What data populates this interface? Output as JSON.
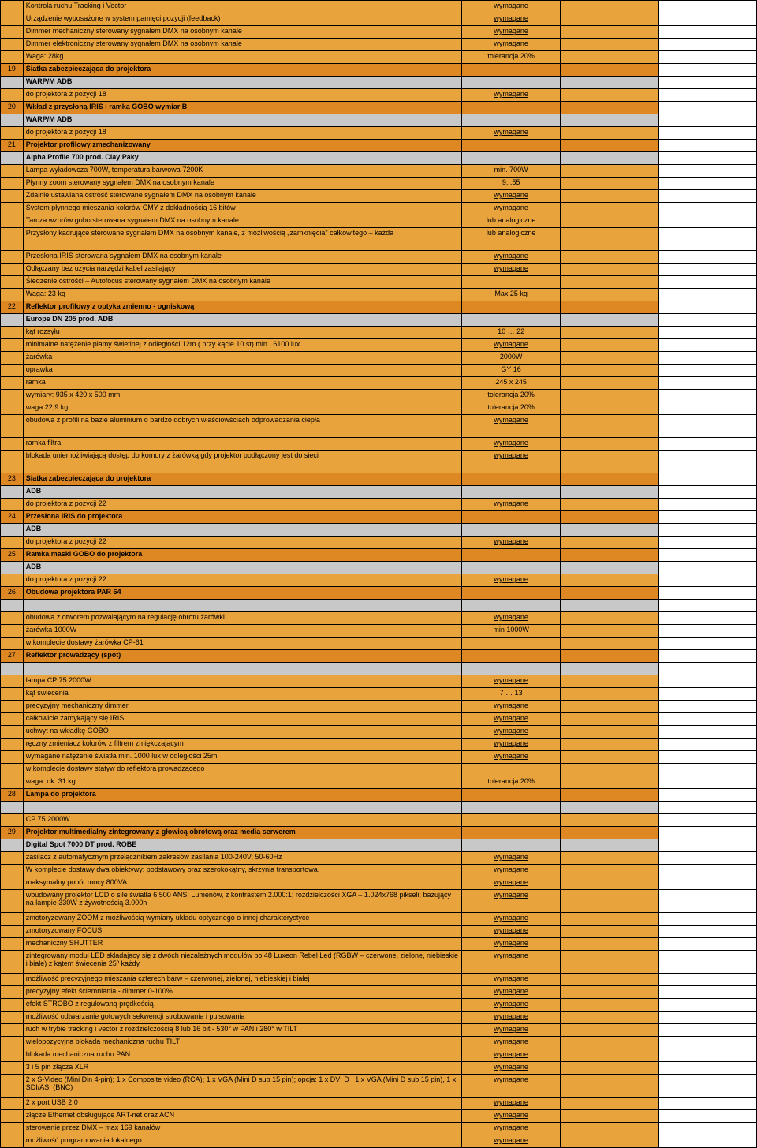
{
  "colors": {
    "orange": "#e8a33d",
    "orange_dark": "#de8824",
    "gray": "#c8c8c8"
  },
  "rows": [
    {
      "num": "",
      "desc": "Kontrola ruchu Tracking i Vector",
      "val": "wymagane",
      "cls": "orange",
      "descCls": "",
      "valCls": "underline"
    },
    {
      "num": "",
      "desc": "Urządzenie wyposażone w system pamięci pozycji (feedback)",
      "val": "wymagane",
      "cls": "orange",
      "valCls": "underline"
    },
    {
      "num": "",
      "desc": "Dimmer mechaniczny sterowany sygnałem DMX na osobnym kanale",
      "val": "wymagane",
      "cls": "orange",
      "valCls": "underline"
    },
    {
      "num": "",
      "desc": "Dimmer elektroniczny sterowany sygnałem DMX na osobnym kanale",
      "val": "wymagane",
      "cls": "orange",
      "valCls": "underline"
    },
    {
      "num": "",
      "desc": "Waga: 28kg",
      "val": "tolerancja 20%",
      "cls": "orange"
    },
    {
      "num": "19",
      "desc": "Siatka zabezpieczająca do projektora",
      "val": "",
      "cls": "orange-dark",
      "descCls": "bold"
    },
    {
      "num": "",
      "desc": "WARP/M ADB",
      "val": "",
      "cls": "gray",
      "descCls": "bold"
    },
    {
      "num": "",
      "desc": "do projektora z pozycji 18",
      "val": "wymagane",
      "cls": "orange",
      "valCls": "underline"
    },
    {
      "num": "20",
      "desc": "Wkład z przysłoną IRIS i ramką GOBO wymiar B",
      "val": "",
      "cls": "orange-dark",
      "descCls": "bold"
    },
    {
      "num": "",
      "desc": "WARP/M ADB",
      "val": "",
      "cls": "gray",
      "descCls": "bold"
    },
    {
      "num": "",
      "desc": "do projektora z pozycji 18",
      "val": "wymagane",
      "cls": "orange",
      "valCls": "underline"
    },
    {
      "num": "21",
      "desc": "Projektor profilowy zmechanizowany",
      "val": "",
      "cls": "orange-dark",
      "descCls": "bold"
    },
    {
      "num": "",
      "desc": "Alpha Profile 700 prod. Clay Paky",
      "val": "",
      "cls": "gray",
      "descCls": "bold"
    },
    {
      "num": "",
      "desc": "Lampa wyładowcza 700W, temperatura barwowa 7200K",
      "val": "min. 700W",
      "cls": "orange"
    },
    {
      "num": "",
      "desc": "Płynny zoom sterowany sygnałem DMX na osobnym kanale",
      "val": "9...55",
      "cls": "orange"
    },
    {
      "num": "",
      "desc": "Zdalnie ustawiana ostrość sterowane sygnałem DMX na osobnym kanale",
      "val": "wymagane",
      "cls": "orange",
      "valCls": "underline"
    },
    {
      "num": "",
      "desc": "System płynnego mieszania kolorów CMY z dokładnością 16 bitów",
      "val": "wymagane",
      "cls": "orange",
      "valCls": "underline"
    },
    {
      "num": "",
      "desc": "Tarcza wzorów gobo sterowana sygnałem DMX na osobnym kanale",
      "val": "lub analogiczne",
      "cls": "orange"
    },
    {
      "num": "",
      "desc": "Przysłony kadrujące sterowane sygnałem DMX na osobnym kanale, z możliwością „zamknięcia\" całkowitego – każda",
      "val": "lub analogiczne",
      "cls": "orange",
      "tall": true
    },
    {
      "num": "",
      "desc": "Przesłona IRIS sterowana sygnałem DMX na osobnym kanale",
      "val": "wymagane",
      "cls": "orange",
      "valCls": "underline"
    },
    {
      "num": "",
      "desc": "Odłączany bez uzycia narzędzi kabel zasilający",
      "val": "wymagane",
      "cls": "orange",
      "valCls": "underline"
    },
    {
      "num": "",
      "desc": "Śledzenie ostrości – Autofocus sterowany sygnałem DMX na osobnym kanale",
      "val": "",
      "cls": "orange"
    },
    {
      "num": "",
      "desc": "Waga: 23 kg",
      "val": "Max 25 kg",
      "cls": "orange"
    },
    {
      "num": "22",
      "desc": "Reflektor profilowy z optyka zmienno - ogniskową",
      "val": "",
      "cls": "orange-dark",
      "descCls": "bold"
    },
    {
      "num": "",
      "desc": "Europe DN 205 prod. ADB",
      "val": "",
      "cls": "gray",
      "descCls": "bold"
    },
    {
      "num": "",
      "desc": "kąt rozsyłu",
      "val": "10 … 22",
      "cls": "orange"
    },
    {
      "num": "",
      "desc": "minimalne natężenie plamy świetlnej z odległości 12m ( przy kącie 10 st) min . 6100 lux",
      "val": "wymagane",
      "cls": "orange",
      "valCls": "underline"
    },
    {
      "num": "",
      "desc": "żarówka",
      "val": "2000W",
      "cls": "orange"
    },
    {
      "num": "",
      "desc": "oprawka",
      "val": "GY 16",
      "cls": "orange"
    },
    {
      "num": "",
      "desc": "ramka",
      "val": "245 x 245",
      "cls": "orange"
    },
    {
      "num": "",
      "desc": "wymiary: 935 x 420 x 500 mm",
      "val": "tolerancja 20%",
      "cls": "orange"
    },
    {
      "num": "",
      "desc": "waga 22,9 kg",
      "val": "tolerancja 20%",
      "cls": "orange"
    },
    {
      "num": "",
      "desc": "obudowa z profili na bazie aluminium o bardzo dobrych właściowściach odprowadzania ciepła",
      "val": "wymagane",
      "cls": "orange",
      "valCls": "underline",
      "tall": true
    },
    {
      "num": "",
      "desc": "ramka filtra",
      "val": "wymagane",
      "cls": "orange",
      "valCls": "underline"
    },
    {
      "num": "",
      "desc": "blokada uniemożliwiającą dostęp do komory z żarówką gdy projektor podłączony jest do sieci",
      "val": "wymagane",
      "cls": "orange",
      "valCls": "underline",
      "tall": true
    },
    {
      "num": "23",
      "desc": "Siatka zabezpieczająca do projektora",
      "val": "",
      "cls": "orange-dark",
      "descCls": "bold"
    },
    {
      "num": "",
      "desc": "ADB",
      "val": "",
      "cls": "gray",
      "descCls": "bold"
    },
    {
      "num": "",
      "desc": "do projektora z pozycji 22",
      "val": "wymagane",
      "cls": "orange",
      "valCls": "underline"
    },
    {
      "num": "24",
      "desc": "Przesłona IRIS do projektora",
      "val": "",
      "cls": "orange-dark",
      "descCls": "bold"
    },
    {
      "num": "",
      "desc": "ADB",
      "val": "",
      "cls": "gray",
      "descCls": "bold"
    },
    {
      "num": "",
      "desc": "do projektora z pozycji 22",
      "val": "wymagane",
      "cls": "orange",
      "valCls": "underline"
    },
    {
      "num": "25",
      "desc": "Ramka maski GOBO do projektora",
      "val": "",
      "cls": "orange-dark",
      "descCls": "bold"
    },
    {
      "num": "",
      "desc": "ADB",
      "val": "",
      "cls": "gray",
      "descCls": "bold"
    },
    {
      "num": "",
      "desc": "do projektora z pozycji 22",
      "val": "wymagane",
      "cls": "orange",
      "valCls": "underline"
    },
    {
      "num": "26",
      "desc": "Obudowa projektora PAR 64",
      "val": "",
      "cls": "orange-dark",
      "descCls": "bold"
    },
    {
      "num": "",
      "desc": "",
      "val": "",
      "cls": "gray"
    },
    {
      "num": "",
      "desc": "obudowa z otworem pozwalającym na regulację obrotu żarówki",
      "val": "wymagane",
      "cls": "orange",
      "valCls": "underline"
    },
    {
      "num": "",
      "desc": "żarówka 1000W",
      "val": "min 1000W",
      "cls": "orange"
    },
    {
      "num": "",
      "desc": "w komplecie dostawy żarówka CP-61",
      "val": "",
      "cls": "orange"
    },
    {
      "num": "27",
      "desc": "Reflektor prowadzący (spot)",
      "val": "",
      "cls": "orange-dark",
      "descCls": "bold"
    },
    {
      "num": "",
      "desc": "",
      "val": "",
      "cls": "gray"
    },
    {
      "num": "",
      "desc": "lampa CP 75 2000W",
      "val": "wymagane",
      "cls": "orange",
      "valCls": "underline"
    },
    {
      "num": "",
      "desc": "kąt świecenia",
      "val": "7 … 13",
      "cls": "orange"
    },
    {
      "num": "",
      "desc": "precyzyjny mechaniczny dimmer",
      "val": "wymagane",
      "cls": "orange",
      "valCls": "underline"
    },
    {
      "num": "",
      "desc": "całkowicie zamykający się IRIS",
      "val": "wymagane",
      "cls": "orange",
      "valCls": "underline"
    },
    {
      "num": "",
      "desc": "uchwyt na wkładkę GOBO",
      "val": "wymagane",
      "cls": "orange",
      "valCls": "underline"
    },
    {
      "num": "",
      "desc": "ręczny zmieniacz kolorów z filtrem zmiękczającym",
      "val": "wymagane",
      "cls": "orange",
      "valCls": "underline"
    },
    {
      "num": "",
      "desc": "wymagane natężenie światła min. 1000 lux w odległości 25m",
      "val": "wymagane",
      "cls": "orange",
      "valCls": "underline"
    },
    {
      "num": "",
      "desc": "w komplecie dostawy statyw do reflektora prowadzącego",
      "val": "",
      "cls": "orange"
    },
    {
      "num": "",
      "desc": "waga: ok. 31 kg",
      "val": "tolerancja 20%",
      "cls": "orange"
    },
    {
      "num": "28",
      "desc": "Lampa do projektora",
      "val": "",
      "cls": "orange-dark",
      "descCls": "bold"
    },
    {
      "num": "",
      "desc": "",
      "val": "",
      "cls": "gray"
    },
    {
      "num": "",
      "desc": " CP 75 2000W",
      "val": "",
      "cls": "orange"
    },
    {
      "num": "29",
      "desc": "Projektor multimedialny zintegrowany z głowicą obrotową oraz media serwerem",
      "val": "",
      "cls": "orange-dark",
      "descCls": "bold"
    },
    {
      "num": "",
      "desc": "Digital Spot 7000 DT prod. ROBE",
      "val": "",
      "cls": "gray",
      "descCls": "bold"
    },
    {
      "num": "",
      "desc": "zasilacz z  automatycznym przełącznikiem zakresów zasilania 100-240V; 50-60Hz",
      "val": "wymagane",
      "cls": "orange",
      "valCls": "underline"
    },
    {
      "num": "",
      "desc": "W komplecie dostawy dwa obiektywy: podstawowy oraz szerokokątny, skrzynia transportowa.",
      "val": "wymagane",
      "cls": "orange",
      "valCls": "underline"
    },
    {
      "num": "",
      "desc": "maksymalny pobór mocy 800VA",
      "val": "wymagane",
      "cls": "orange",
      "valCls": "underline"
    },
    {
      "num": "",
      "desc": "wbudowany projektor LCD o sile światła 6.500 ANSI Lumenów, z kontrastem 2.000:1; rozdzielczości XGA – 1.024x768 pikseli; bazujący na lampie 330W z żywotnością 3.000h",
      "val": "wymagane",
      "cls": "orange",
      "valCls": "underline",
      "tall": true
    },
    {
      "num": "",
      "desc": "zmotoryzowany ZOOM z możliwością wymiany układu optycznego o innej charakterystyce",
      "val": "wymagane",
      "cls": "orange",
      "valCls": "underline"
    },
    {
      "num": "",
      "desc": "zmotoryzowany FOCUS",
      "val": "wymagane",
      "cls": "orange",
      "valCls": "underline"
    },
    {
      "num": "",
      "desc": "mechaniczny SHUTTER",
      "val": "wymagane",
      "cls": "orange",
      "valCls": "underline"
    },
    {
      "num": "",
      "desc": "zintegrowany moduł LED składający się z dwóch niezależnych modułów po 48 Luxeon Rebel Led (RGBW – czerwone, zielone, niebieskie i białe) z kątem świecenia 25º każdy",
      "val": "wymagane",
      "cls": "orange",
      "valCls": "underline",
      "tall": true
    },
    {
      "num": "",
      "desc": "możliwość precyzyjnego mieszania czterech barw – czerwonej, zielonej, niebieskiej i białej",
      "val": "wymagane",
      "cls": "orange",
      "valCls": "underline"
    },
    {
      "num": "",
      "desc": "precyzyjny efekt ściemniania - dimmer 0-100%",
      "val": "wymagane",
      "cls": "orange",
      "valCls": "underline"
    },
    {
      "num": "",
      "desc": "efekt STROBO z regulowaną prędkością",
      "val": "wymagane",
      "cls": "orange",
      "valCls": "underline"
    },
    {
      "num": "",
      "desc": "możliwość odtwarzanie gotowych sekwencji strobowania i pulsowania",
      "val": "wymagane",
      "cls": "orange",
      "valCls": "underline"
    },
    {
      "num": "",
      "desc": "ruch w trybie tracking i vector z rozdzielczością 8 lub 16 bit -  530° w PAN i 280° w TILT",
      "val": "wymagane",
      "cls": "orange",
      "valCls": "underline"
    },
    {
      "num": "",
      "desc": "wielopozycyjna blokada mechaniczna ruchu TILT",
      "val": "wymagane",
      "cls": "orange",
      "valCls": "underline"
    },
    {
      "num": "",
      "desc": "blokada mechaniczna ruchu PAN",
      "val": "wymagane",
      "cls": "orange",
      "valCls": "underline"
    },
    {
      "num": "",
      "desc": "3 i 5 pin złącza XLR",
      "val": "wymagane",
      "cls": "orange",
      "valCls": "underline"
    },
    {
      "num": "",
      "desc": "2 x S-Video (Mini Din 4-pin); 1 x Composite video (RCA);   1 x VGA (Mini D sub 15 pin); opcja: 1 x DVI D , 1 x VGA (Mini D sub 15 pin), 1 x SDI/ASI (BNC)",
      "val": "wymagane",
      "cls": "orange",
      "valCls": "underline",
      "tall": true
    },
    {
      "num": "",
      "desc": "2 x port USB 2.0",
      "val": "wymagane",
      "cls": "orange",
      "valCls": "underline"
    },
    {
      "num": "",
      "desc": "złącze Ethernet obsługujące ART-net oraz ACN",
      "val": "wymagane",
      "cls": "orange",
      "valCls": "underline"
    },
    {
      "num": "",
      "desc": "sterowanie przez DMX – max 169 kanałów",
      "val": "wymagane",
      "cls": "orange",
      "valCls": "underline"
    },
    {
      "num": "",
      "desc": "możliwość programowania lokalnego",
      "val": "wymagane",
      "cls": "orange",
      "valCls": "underline"
    }
  ]
}
